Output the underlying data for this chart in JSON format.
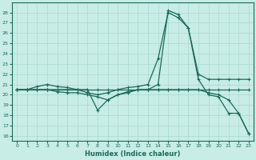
{
  "xlabel": "Humidex (Indice chaleur)",
  "xlim": [
    -0.5,
    23.5
  ],
  "ylim": [
    15.5,
    29
  ],
  "yticks": [
    16,
    17,
    18,
    19,
    20,
    21,
    22,
    23,
    24,
    25,
    26,
    27,
    28
  ],
  "xticks": [
    0,
    1,
    2,
    3,
    4,
    5,
    6,
    7,
    8,
    9,
    10,
    11,
    12,
    13,
    14,
    15,
    16,
    17,
    18,
    19,
    20,
    21,
    22,
    23
  ],
  "bg_color": "#c8ece6",
  "grid_color": "#a8d8d0",
  "line_color": "#1a6b5a",
  "line1_y": [
    20.5,
    20.5,
    20.5,
    20.5,
    20.5,
    20.5,
    20.5,
    20.5,
    20.5,
    20.5,
    20.5,
    20.5,
    20.5,
    20.5,
    20.5,
    20.5,
    20.5,
    20.5,
    20.5,
    20.5,
    20.5,
    20.5,
    20.5,
    20.5
  ],
  "line2_y": [
    20.5,
    20.5,
    20.8,
    21.0,
    20.8,
    20.7,
    20.5,
    20.2,
    20.0,
    20.2,
    20.5,
    20.7,
    20.8,
    21.0,
    23.5,
    28.0,
    27.5,
    26.5,
    22.0,
    21.5,
    21.5,
    21.5,
    21.5,
    21.5
  ],
  "line3_y": [
    20.5,
    20.5,
    20.5,
    20.5,
    20.3,
    20.2,
    20.2,
    20.0,
    19.8,
    19.5,
    20.0,
    20.2,
    20.5,
    20.5,
    21.0,
    28.2,
    27.8,
    26.5,
    21.5,
    20.0,
    19.8,
    18.2,
    18.2,
    16.2
  ],
  "line4_y": [
    20.5,
    20.5,
    20.5,
    20.5,
    20.5,
    20.5,
    20.5,
    20.5,
    18.5,
    19.5,
    20.0,
    20.3,
    20.5,
    20.5,
    20.5,
    20.5,
    20.5,
    20.5,
    20.5,
    20.2,
    20.0,
    19.5,
    18.2,
    16.2
  ],
  "marker": "+",
  "marker_size": 3.5,
  "linewidth": 0.9
}
